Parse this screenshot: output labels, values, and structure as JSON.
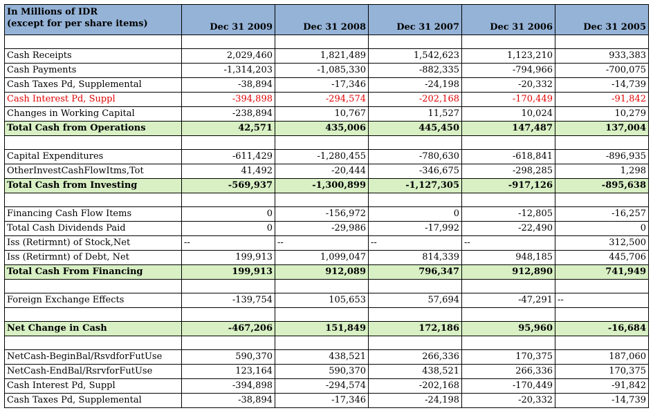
{
  "header": {
    "label_line1": "In Millions of IDR",
    "label_line2": "(except for per share items)",
    "years": [
      "Dec 31 2009",
      "Dec 31 2008",
      "Dec 31 2007",
      "Dec 31 2006",
      "Dec 31 2005"
    ]
  },
  "rows": [
    {
      "type": "blank"
    },
    {
      "type": "data",
      "label": "Cash Receipts",
      "values": [
        "2,029,460",
        "1,821,489",
        "1,542,623",
        "1,123,210",
        "933,383"
      ]
    },
    {
      "type": "data",
      "label": "Cash Payments",
      "values": [
        "-1,314,203",
        "-1,085,330",
        "-882,335",
        "-794,966",
        "-700,075"
      ]
    },
    {
      "type": "data",
      "label": "Cash Taxes Pd, Supplemental",
      "values": [
        "-38,894",
        "-17,346",
        "-24,198",
        "-20,332",
        "-14,739"
      ]
    },
    {
      "type": "highlight",
      "label": "Cash Interest Pd, Suppl",
      "values": [
        "-394,898",
        "-294,574",
        "-202,168",
        "-170,449",
        "-91,842"
      ]
    },
    {
      "type": "data",
      "label": "Changes in Working Capital",
      "values": [
        "-238,894",
        "10,767",
        "11,527",
        "10,024",
        "10,279"
      ]
    },
    {
      "type": "total",
      "label": "Total Cash from Operations",
      "values": [
        "42,571",
        "435,006",
        "445,450",
        "147,487",
        "137,004"
      ]
    },
    {
      "type": "blank"
    },
    {
      "type": "data",
      "label": "Capital Expenditures",
      "values": [
        "-611,429",
        "-1,280,455",
        "-780,630",
        "-618,841",
        "-896,935"
      ]
    },
    {
      "type": "data",
      "label": "OtherInvestCashFlowItms,Tot",
      "values": [
        "41,492",
        "-20,444",
        "-346,675",
        "-298,285",
        "1,298"
      ]
    },
    {
      "type": "total",
      "label": "Total Cash from Investing",
      "values": [
        "-569,937",
        "-1,300,899",
        "-1,127,305",
        "-917,126",
        "-895,638"
      ]
    },
    {
      "type": "blank"
    },
    {
      "type": "data",
      "label": "Financing Cash Flow Items",
      "values": [
        "0",
        "-156,972",
        "0",
        "-12,805",
        "-16,257"
      ]
    },
    {
      "type": "data",
      "label": "Total Cash Dividends Paid",
      "values": [
        "0",
        "-29,986",
        "-17,992",
        "-22,490",
        "0"
      ]
    },
    {
      "type": "data",
      "label": "Iss (Retirmnt) of Stock,Net",
      "values": [
        "--",
        "--",
        "--",
        "--",
        "312,500"
      ]
    },
    {
      "type": "data",
      "label": "Iss (Retirmnt) of Debt, Net",
      "values": [
        "199,913",
        "1,099,047",
        "814,339",
        "948,185",
        "445,706"
      ]
    },
    {
      "type": "total",
      "label": "Total Cash From Financing",
      "values": [
        "199,913",
        "912,089",
        "796,347",
        "912,890",
        "741,949"
      ]
    },
    {
      "type": "blank"
    },
    {
      "type": "data",
      "label": "Foreign Exchange Effects",
      "values": [
        "-139,754",
        "105,653",
        "57,694",
        "-47,291",
        "--"
      ]
    },
    {
      "type": "blank"
    },
    {
      "type": "total",
      "label": "Net Change in Cash",
      "values": [
        "-467,206",
        "151,849",
        "172,186",
        "95,960",
        "-16,684"
      ]
    },
    {
      "type": "blank"
    },
    {
      "type": "data",
      "label": "NetCash-BeginBal/RsvdforFutUse",
      "values": [
        "590,370",
        "438,521",
        "266,336",
        "170,375",
        "187,060"
      ]
    },
    {
      "type": "data",
      "label": "NetCash-EndBal/RsrvforFutUse",
      "values": [
        "123,164",
        "590,370",
        "438,521",
        "266,336",
        "170,375"
      ]
    },
    {
      "type": "data",
      "label": "Cash Interest Pd, Suppl",
      "values": [
        "-394,898",
        "-294,574",
        "-202,168",
        "-170,449",
        "-91,842"
      ]
    },
    {
      "type": "data",
      "label": "Cash Taxes Pd, Supplemental",
      "values": [
        "-38,894",
        "-17,346",
        "-24,198",
        "-20,332",
        "-14,739"
      ]
    }
  ]
}
